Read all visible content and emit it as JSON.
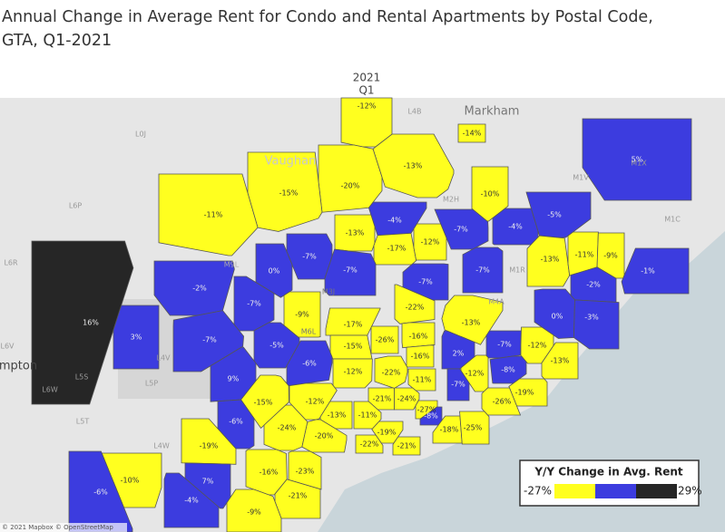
{
  "title_lines": [
    "Annual Change in Average Rent for Condo and Rental Apartments by Postal Code,",
    "GTA, Q1-2021"
  ],
  "column_header": {
    "year": "2021",
    "quarter": "Q1"
  },
  "regions": {
    "values": [
      -12,
      -14,
      5,
      -13,
      -20,
      -15,
      -11,
      -10,
      -4,
      -7,
      -4,
      -5,
      -13,
      -17,
      -12,
      -7,
      -7,
      0,
      -7,
      -2,
      16,
      3,
      -7,
      -9,
      -7,
      -7,
      -13,
      -11,
      -9,
      -1,
      -2,
      0,
      -3,
      -22,
      -13,
      -17,
      -26,
      -16,
      -15,
      -16,
      -5,
      -6,
      9,
      -12,
      -22,
      -11,
      2,
      -7,
      -12,
      -8,
      -12,
      -7,
      -13,
      -19,
      -26,
      -15,
      -12,
      -21,
      -24,
      -27,
      -6,
      -13,
      -11,
      -8,
      -24,
      -20,
      -19,
      -18,
      -25,
      -22,
      -21,
      -19,
      -10,
      -6,
      7,
      -4,
      -16,
      -23,
      -21,
      -9
    ],
    "value_labels": [
      "-12%",
      "-14%",
      "5%",
      "-13%",
      "-20%",
      "-15%",
      "-11%",
      "-10%",
      "-4%",
      "-7%",
      "-4%",
      "-5%",
      "-13%",
      "-17%",
      "-12%",
      "-7%",
      "-7%",
      "0%",
      "-7%",
      "-2%",
      "16%",
      "3%",
      "-7%",
      "-9%",
      "-7%",
      "-7%",
      "-13%",
      "-11%",
      "-9%",
      "-1%",
      "-2%",
      "0%",
      "-3%",
      "-22%",
      "-13%",
      "-17%",
      "-26%",
      "-16%",
      "-15%",
      "-16%",
      "-5%",
      "-6%",
      "9%",
      "-12%",
      "-22%",
      "-11%",
      "2%",
      "-7%",
      "-12%",
      "-8%",
      "-12%",
      "-7%",
      "-13%",
      "-19%",
      "-26%",
      "-15%",
      "-12%",
      "-21%",
      "-24%",
      "-27%",
      "-6%",
      "-13%",
      "-11%",
      "-8%",
      "-24%",
      "-20%",
      "-19%",
      "-18%",
      "-25%",
      "-22%",
      "-21%",
      "-19%",
      "-10%",
      "-6%",
      "7%",
      "-4%",
      "-16%",
      "-23%",
      "-21%",
      "-9%"
    ]
  },
  "place_labels": [
    "Markham",
    "Vaughan",
    "mpton",
    "L4B",
    "L0J",
    "L6P",
    "L6R",
    "L6V",
    "L6W",
    "L5S",
    "L5P",
    "L5T",
    "L4W",
    "L4V",
    "M9L",
    "M3J",
    "M6L",
    "M1X",
    "M1V",
    "M2H",
    "M1C",
    "M1R",
    "M4A"
  ],
  "legend": {
    "title": "Y/Y Change in Avg. Rent",
    "min": {
      "value": -27,
      "label": "-27%"
    },
    "max": {
      "value": 29,
      "label": "29%"
    },
    "colors": [
      "#ffff1f",
      "#3c3cdf",
      "#262626"
    ]
  },
  "attribution": "© 2021 Mapbox © OpenStreetMap"
}
